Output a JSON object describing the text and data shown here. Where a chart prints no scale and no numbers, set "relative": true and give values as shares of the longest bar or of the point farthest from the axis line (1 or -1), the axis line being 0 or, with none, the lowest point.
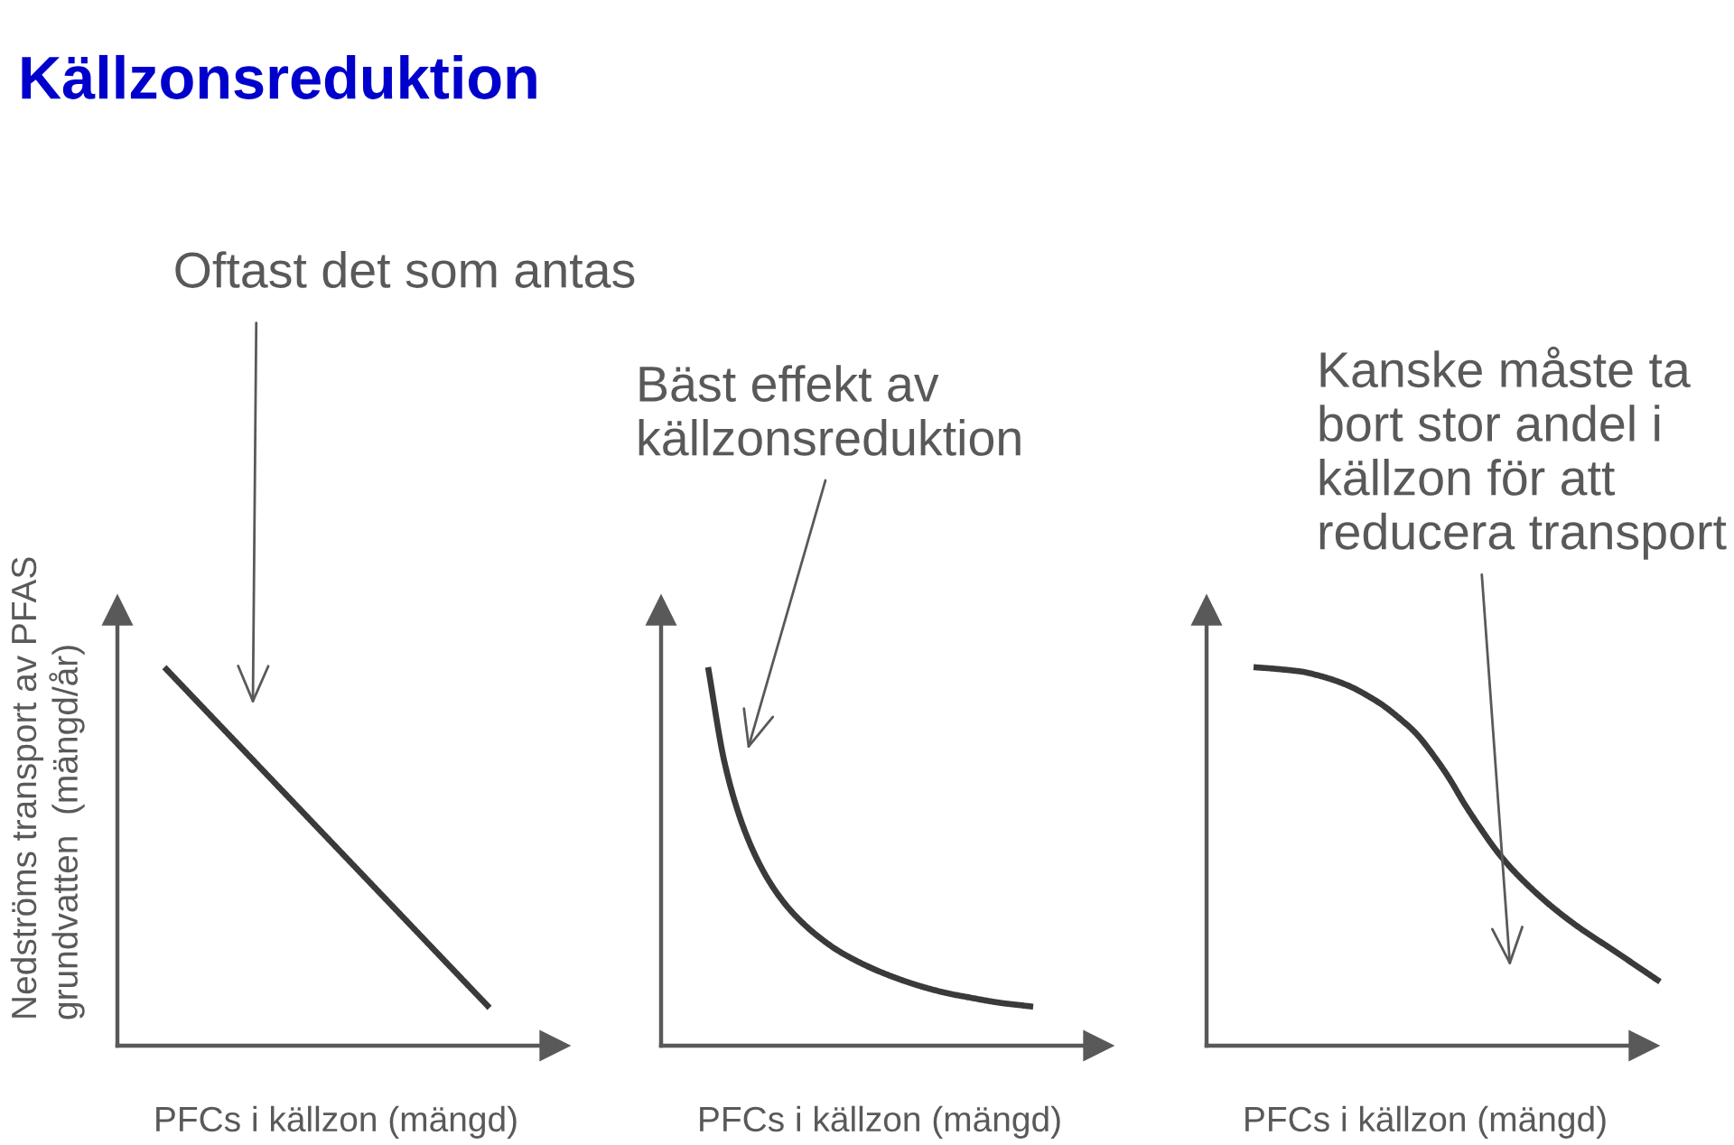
{
  "chart_data": [
    {
      "type": "line",
      "relative": true,
      "title": "Källzonsreduktion",
      "categories": [
        null,
        null,
        null,
        null,
        null,
        null,
        null,
        null,
        null,
        null,
        null,
        null,
        null,
        null,
        null,
        null,
        null,
        null,
        null,
        null,
        null,
        null,
        null,
        null,
        null,
        null
      ],
      "series": [
        {
          "color": "#3a3a3a",
          "values": [
            1.0,
            0.955,
            0.91,
            0.865,
            0.82,
            0.775,
            0.73,
            0.685,
            0.64,
            0.595,
            0.55,
            0.505,
            0.46,
            0.415,
            0.37,
            0.325,
            0.28,
            0.235,
            0.19,
            0.145,
            0.1,
            null,
            null,
            null,
            null,
            null
          ]
        }
      ],
      "xlabel": "PFCs i källzon (mängd)",
      "ylabel": "Nedströms transport av PFAS\ngrundvatten  (mängd/år)",
      "annotations": [
        "Oftast det som antas"
      ]
    },
    {
      "type": "line",
      "relative": true,
      "categories": [
        null,
        null,
        null,
        null,
        null,
        null,
        null,
        null,
        null,
        null,
        null,
        null,
        null,
        null,
        null,
        null,
        null,
        null,
        null,
        null,
        null,
        null,
        null,
        null,
        null,
        null
      ],
      "series": [
        {
          "color": "#3a3a3a",
          "values": [
            1.0,
            0.751,
            0.598,
            0.494,
            0.418,
            0.361,
            0.317,
            0.281,
            0.251,
            0.227,
            0.206,
            0.188,
            0.172,
            0.158,
            0.146,
            0.136,
            0.128,
            0.12,
            0.113,
            0.108,
            0.103,
            null,
            null,
            null,
            null,
            null
          ]
        }
      ],
      "xlabel": "PFCs i källzon (mängd)",
      "annotations": [
        "Bäst effekt av\nkällzonsreduktion"
      ]
    },
    {
      "type": "line",
      "relative": true,
      "categories": [
        null,
        null,
        null,
        null,
        null,
        null,
        null,
        null,
        null,
        null,
        null,
        null,
        null,
        null,
        null,
        null,
        null,
        null,
        null,
        null,
        null,
        null,
        null,
        null,
        null,
        null
      ],
      "series": [
        {
          "color": "#3a3a3a",
          "values": [
            1.0,
            0.997,
            0.993,
            0.988,
            0.978,
            0.965,
            0.948,
            0.925,
            0.898,
            0.864,
            0.825,
            0.771,
            0.709,
            0.637,
            0.572,
            0.512,
            0.462,
            0.419,
            0.38,
            0.345,
            0.313,
            0.284,
            0.256,
            0.227,
            0.198,
            0.169
          ]
        }
      ],
      "xlabel": "PFCs i källzon (mängd)",
      "annotations": [
        "Kanske måste ta\nbort stor andel i\nkällzon för att\nreducera transport"
      ]
    }
  ]
}
